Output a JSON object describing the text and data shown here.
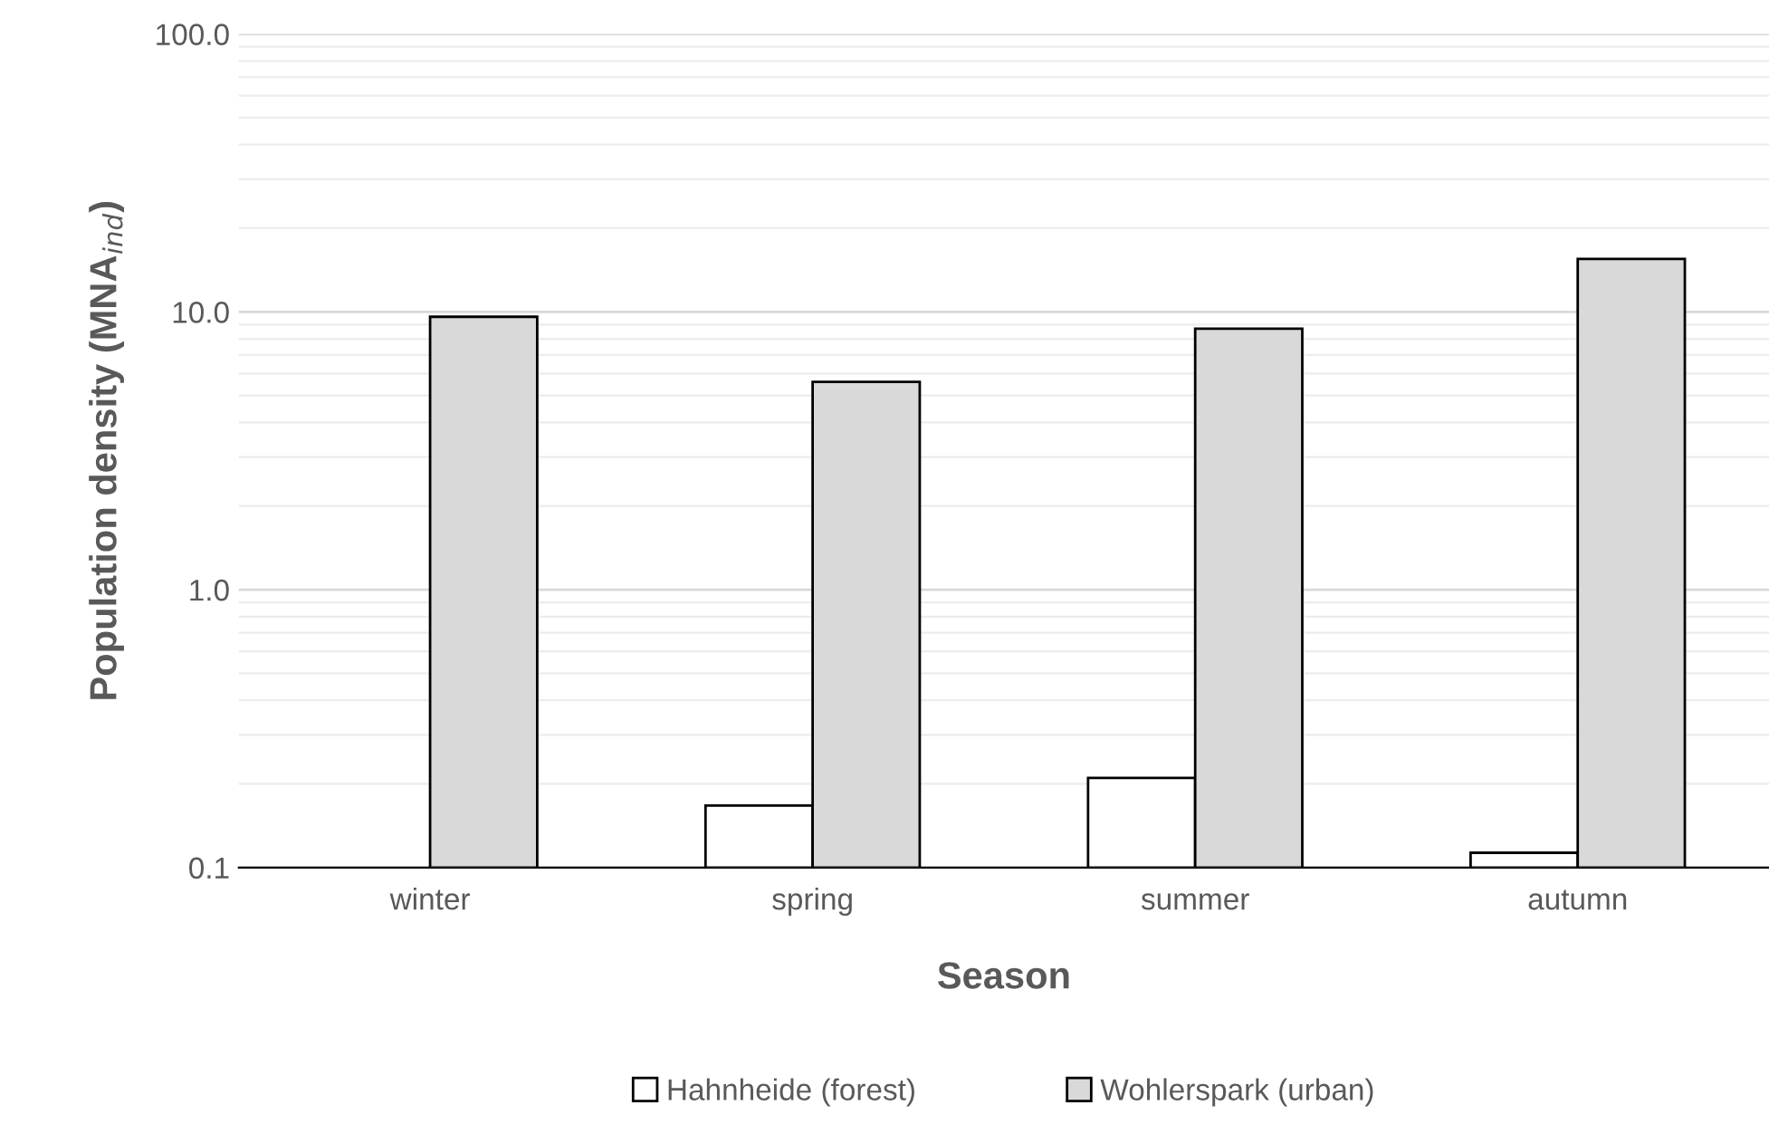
{
  "chart_data": {
    "type": "bar",
    "xlabel": "Season",
    "ylabel": "Population density (MNA$_{ind}$)",
    "categories": [
      "winter",
      "spring",
      "summer",
      "autumn"
    ],
    "series": [
      {
        "name": "Hahnheide (forest)",
        "color": "#ffffff",
        "values": [
          null,
          0.167,
          0.21,
          0.113
        ]
      },
      {
        "name": "Wohlerspark (urban)",
        "color": "#d9d9d9",
        "values": [
          9.6,
          5.6,
          8.7,
          15.5
        ]
      }
    ],
    "log": true,
    "ylim": [
      0.1,
      100
    ],
    "yticks": [
      0.1,
      {
        "value": 1,
        "label": "1.0"
      },
      {
        "value": 10,
        "label": "10.0"
      },
      {
        "value": 100,
        "label": "100.0"
      }
    ],
    "grid": "y",
    "legend": "bottom"
  }
}
